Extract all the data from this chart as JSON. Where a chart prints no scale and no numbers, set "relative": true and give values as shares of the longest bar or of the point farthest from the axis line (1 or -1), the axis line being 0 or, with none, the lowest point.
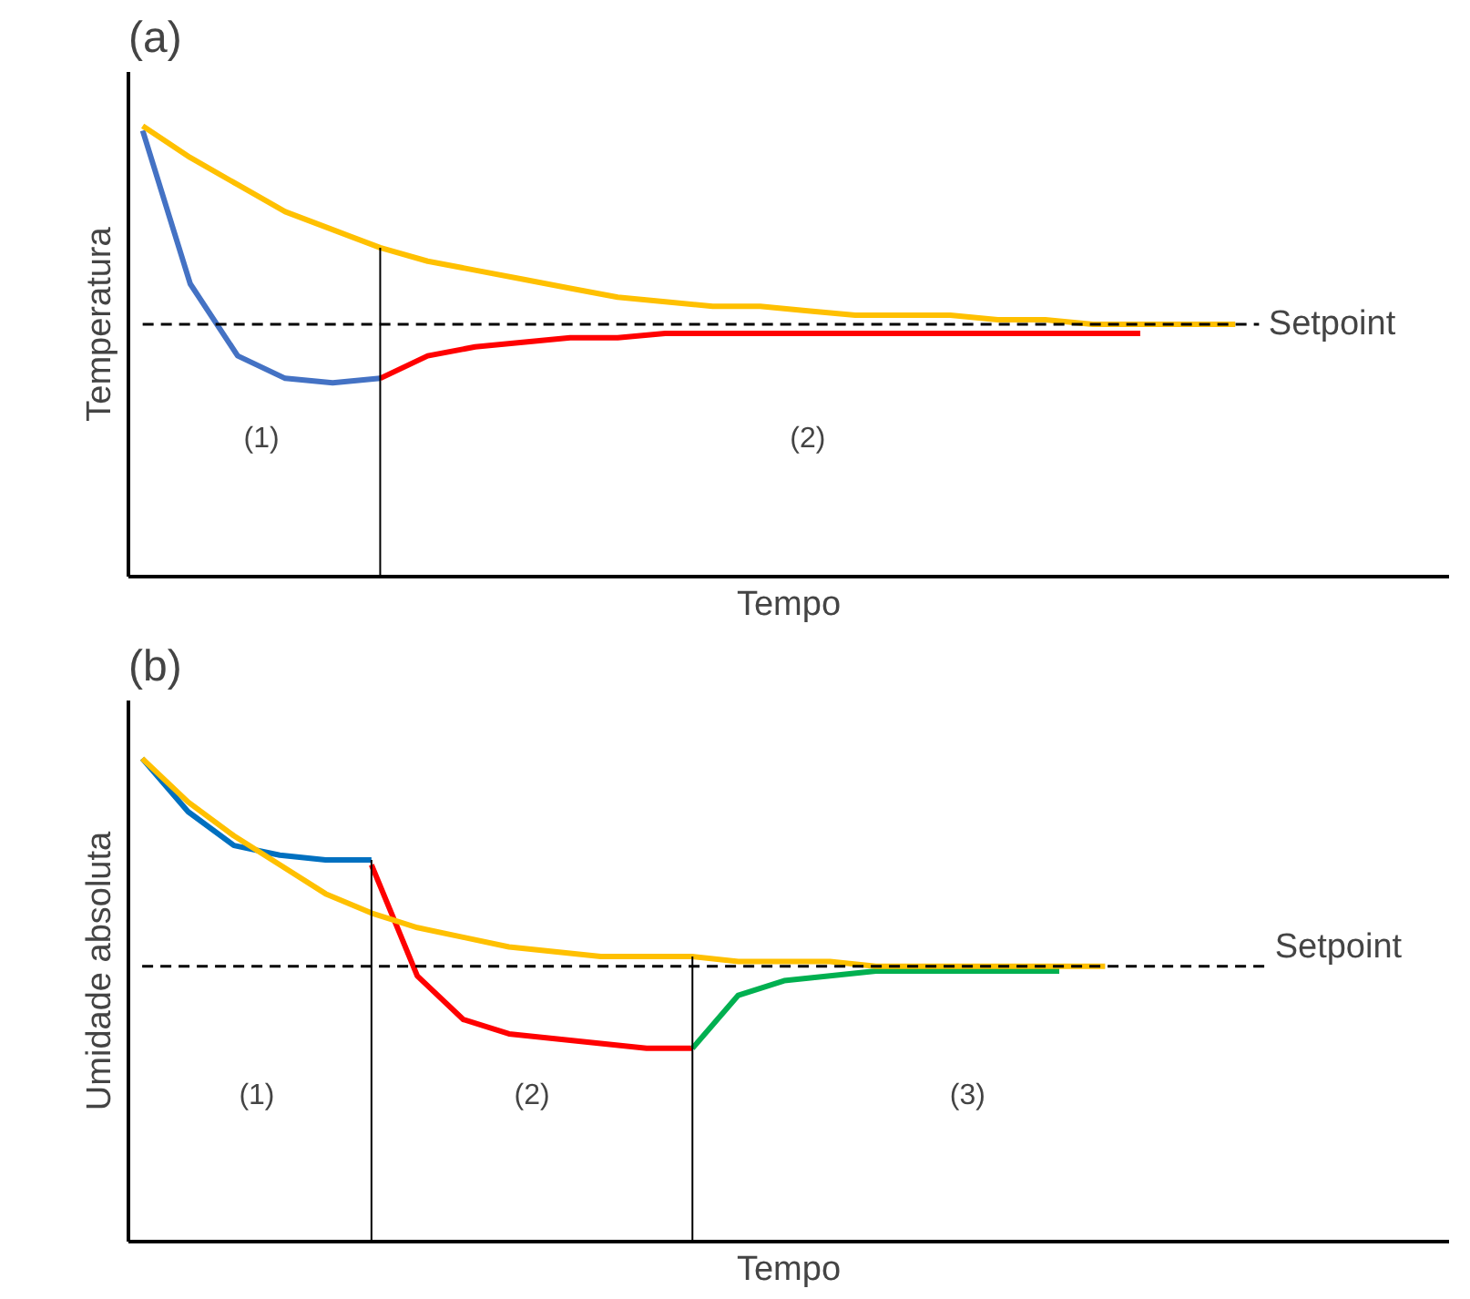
{
  "chart_data": [
    {
      "type": "line",
      "title": "(a)",
      "xlabel": "Tempo",
      "ylabel": "Temperatura",
      "relative": true,
      "categories": [
        null,
        null,
        null,
        null,
        null,
        null,
        null,
        null,
        null,
        null,
        null,
        null,
        null,
        null,
        null,
        null,
        null,
        null,
        null,
        null,
        null,
        null,
        null,
        null
      ],
      "series": [
        {
          "color": "#4472c4",
          "values": [
            0.99,
            0.65,
            0.49,
            0.44,
            0.43,
            0.44,
            null,
            null,
            null,
            null,
            null,
            null,
            null,
            null,
            null,
            null,
            null,
            null,
            null,
            null,
            null,
            null,
            null,
            null
          ]
        },
        {
          "color": "#ff0000",
          "values": [
            null,
            null,
            null,
            null,
            null,
            0.44,
            0.49,
            0.51,
            0.52,
            0.53,
            0.53,
            0.54,
            0.54,
            0.54,
            0.54,
            0.54,
            0.54,
            0.54,
            0.54,
            0.54,
            0.54,
            0.54,
            null,
            null
          ]
        },
        {
          "color": "#ffc000",
          "values": [
            1.0,
            0.93,
            0.87,
            0.81,
            0.77,
            0.73,
            0.7,
            0.68,
            0.66,
            0.64,
            0.62,
            0.61,
            0.6,
            0.6,
            0.59,
            0.58,
            0.58,
            0.58,
            0.57,
            0.57,
            0.56,
            0.56,
            0.56,
            0.56
          ]
        }
      ],
      "ref_lines": [
        {
          "axis": "y",
          "value": 0.56,
          "label": "Setpoint",
          "line_style": "dashed",
          "color": "#000000"
        }
      ],
      "annotations": [
        "(1)",
        "(2)"
      ]
    },
    {
      "type": "line",
      "title": "(b)",
      "xlabel": "Tempo",
      "ylabel": "Umidade absoluta",
      "relative": true,
      "categories": [
        null,
        null,
        null,
        null,
        null,
        null,
        null,
        null,
        null,
        null,
        null,
        null,
        null,
        null,
        null,
        null,
        null,
        null,
        null,
        null,
        null,
        null,
        null,
        null,
        null
      ],
      "series": [
        {
          "color": "#0070c0",
          "values": [
            1.0,
            0.89,
            0.82,
            0.8,
            0.79,
            0.79,
            null,
            null,
            null,
            null,
            null,
            null,
            null,
            null,
            null,
            null,
            null,
            null,
            null,
            null,
            null,
            null,
            null,
            null,
            null
          ]
        },
        {
          "color": "#ff0000",
          "values": [
            null,
            null,
            null,
            null,
            null,
            0.78,
            0.55,
            0.46,
            0.43,
            0.42,
            0.41,
            0.4,
            0.4,
            null,
            null,
            null,
            null,
            null,
            null,
            null,
            null,
            null,
            null,
            null,
            null
          ]
        },
        {
          "color": "#00b050",
          "values": [
            null,
            null,
            null,
            null,
            null,
            null,
            null,
            null,
            null,
            null,
            null,
            null,
            0.4,
            0.51,
            0.54,
            0.55,
            0.56,
            0.56,
            0.56,
            0.56,
            0.56,
            null,
            null,
            null,
            null
          ]
        },
        {
          "color": "#ffc000",
          "values": [
            1.0,
            0.91,
            0.84,
            0.78,
            0.72,
            0.68,
            0.65,
            0.63,
            0.61,
            0.6,
            0.59,
            0.59,
            0.59,
            0.58,
            0.58,
            0.58,
            0.57,
            0.57,
            0.57,
            0.57,
            0.57,
            0.57,
            null,
            null,
            null
          ]
        }
      ],
      "ref_lines": [
        {
          "axis": "y",
          "value": 0.57,
          "label": "Setpoint",
          "line_style": "dashed",
          "color": "#000000"
        }
      ],
      "annotations": [
        "(1)",
        "(2)",
        "(3)"
      ]
    }
  ]
}
